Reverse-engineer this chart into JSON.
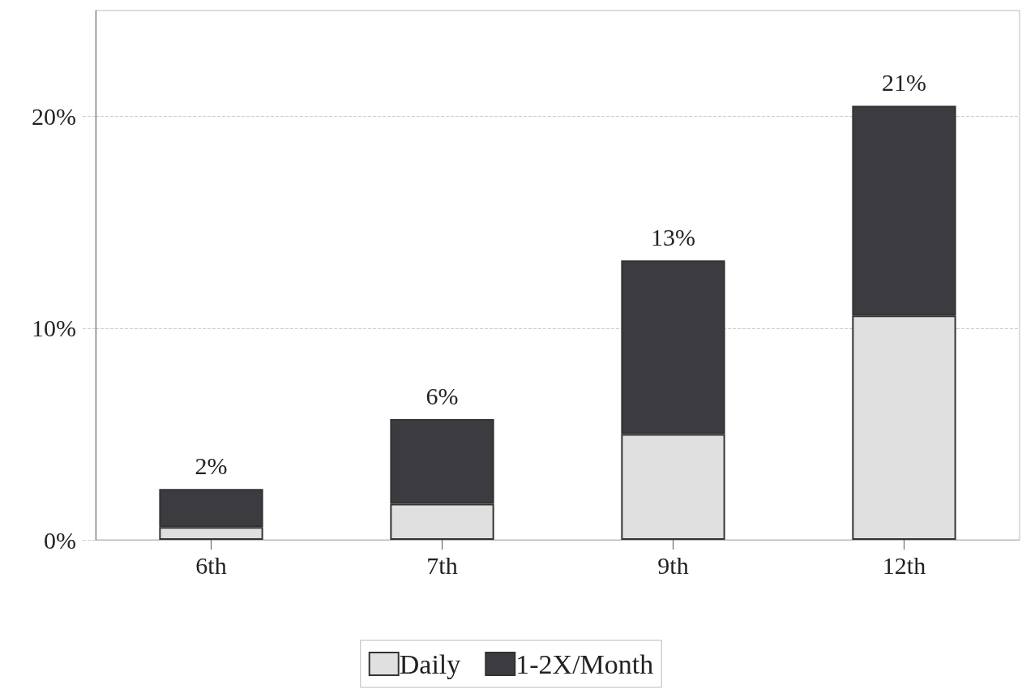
{
  "chart_data": {
    "type": "bar",
    "stacked": true,
    "categories": [
      "6th",
      "7th",
      "9th",
      "12th"
    ],
    "series": [
      {
        "name": "Daily",
        "color": "#e0e0e0",
        "values": [
          0.6,
          1.7,
          5.0,
          10.6
        ]
      },
      {
        "name": "1-2X/Month",
        "color": "#3c3c40",
        "values": [
          1.8,
          4.0,
          8.2,
          9.9
        ]
      }
    ],
    "totals": [
      "2%",
      "6%",
      "13%",
      "21%"
    ],
    "ylim": [
      0,
      25
    ],
    "yticks": [
      {
        "value": 0,
        "label": "0%"
      },
      {
        "value": 10,
        "label": "10%"
      },
      {
        "value": 20,
        "label": "20%"
      }
    ],
    "grid": "y",
    "legend": "bottom"
  }
}
